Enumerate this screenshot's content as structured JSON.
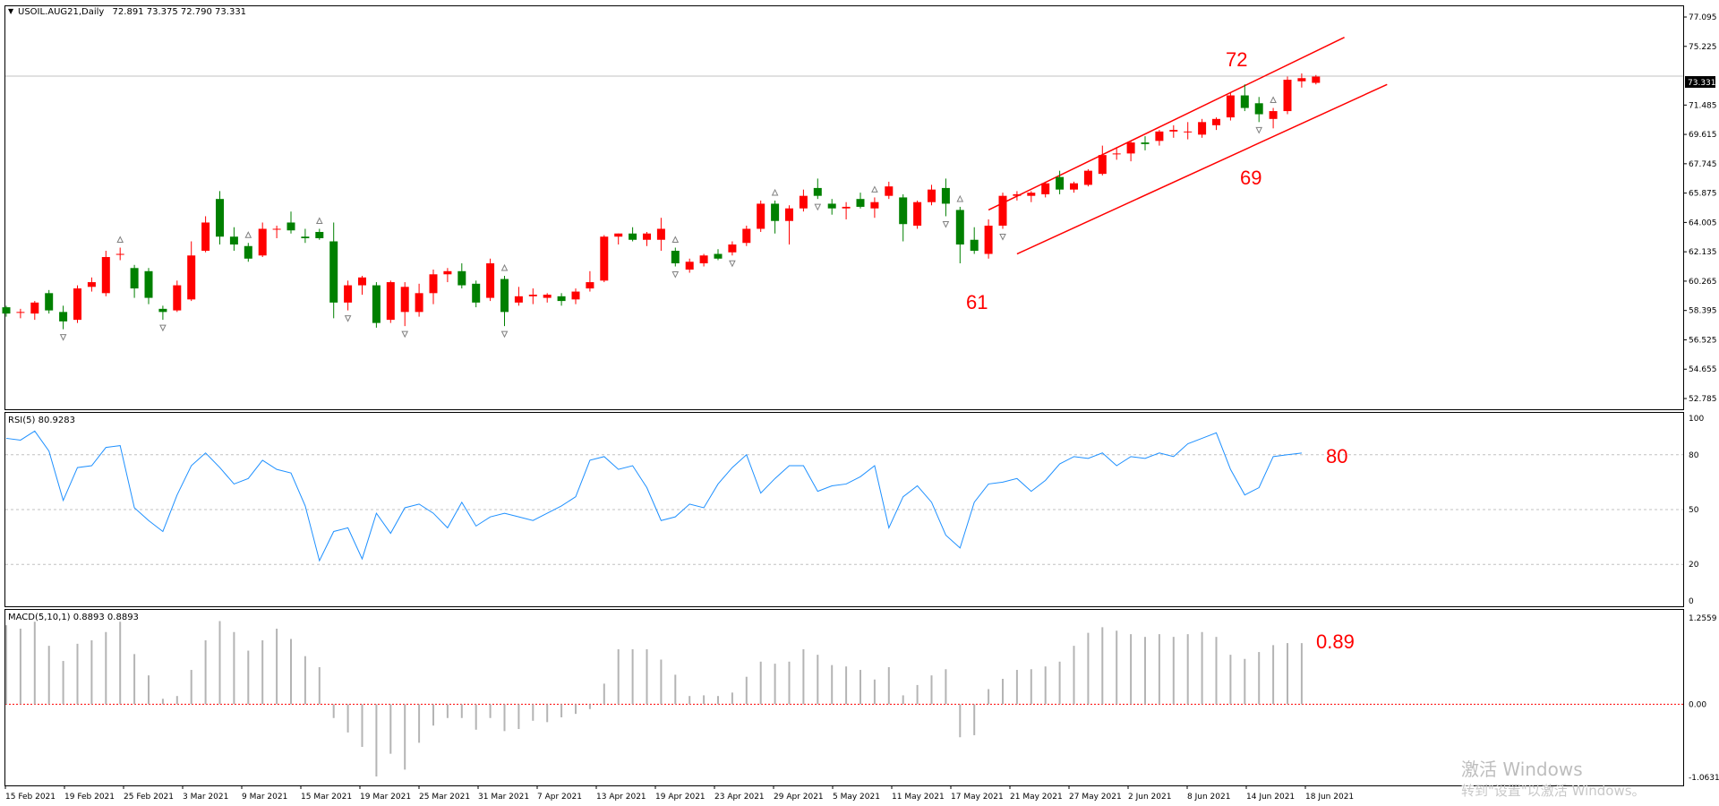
{
  "header": {
    "symbol": "USOIL.AUG21,Daily",
    "ohlc": "72.891 73.375 72.790 73.331"
  },
  "colors": {
    "bull": "#ff0000",
    "bear": "#008000",
    "rsi_line": "#1e90ff",
    "macd_bars": "#b4b4b4",
    "channel": "#ff0000",
    "annotation": "#ff0000"
  },
  "chart_data": [
    {
      "type": "candlestick",
      "title": "USOIL.AUG21,Daily",
      "current_price_label": "73.331",
      "ylim": [
        52.785,
        77.095
      ],
      "y_ticks": [
        "77.095",
        "75.225",
        "73.331",
        "71.485",
        "69.615",
        "67.745",
        "65.875",
        "64.005",
        "62.135",
        "60.265",
        "58.395",
        "56.525",
        "54.655",
        "52.785"
      ],
      "x_ticks": [
        "15 Feb 2021",
        "19 Feb 2021",
        "25 Feb 2021",
        "3 Mar 2021",
        "9 Mar 2021",
        "15 Mar 2021",
        "19 Mar 2021",
        "25 Mar 2021",
        "31 Mar 2021",
        "7 Apr 2021",
        "13 Apr 2021",
        "19 Apr 2021",
        "23 Apr 2021",
        "29 Apr 2021",
        "5 May 2021",
        "11 May 2021",
        "17 May 2021",
        "21 May 2021",
        "27 May 2021",
        "2 Jun 2021",
        "8 Jun 2021",
        "14 Jun 2021",
        "18 Jun 2021"
      ],
      "candles": [
        [
          58.6,
          58.7,
          58.0,
          58.2
        ],
        [
          58.3,
          58.5,
          57.9,
          58.3
        ],
        [
          58.2,
          59.0,
          57.8,
          58.9
        ],
        [
          59.5,
          59.7,
          58.2,
          58.4
        ],
        [
          58.3,
          58.7,
          57.2,
          57.7
        ],
        [
          57.8,
          60.0,
          57.6,
          59.8
        ],
        [
          59.9,
          60.5,
          59.6,
          60.2
        ],
        [
          59.5,
          62.2,
          59.3,
          61.8
        ],
        [
          62.0,
          62.4,
          61.6,
          62.0
        ],
        [
          61.1,
          61.3,
          59.2,
          59.8
        ],
        [
          60.9,
          61.1,
          58.8,
          59.2
        ],
        [
          58.5,
          58.7,
          57.8,
          58.3
        ],
        [
          58.4,
          60.3,
          58.3,
          60.0
        ],
        [
          59.1,
          62.8,
          59.0,
          61.9
        ],
        [
          62.2,
          64.4,
          62.1,
          64.0
        ],
        [
          65.5,
          66.0,
          62.6,
          63.1
        ],
        [
          63.1,
          63.7,
          62.2,
          62.6
        ],
        [
          62.5,
          62.7,
          61.5,
          61.7
        ],
        [
          61.9,
          64.0,
          61.8,
          63.6
        ],
        [
          63.6,
          63.8,
          63.0,
          63.6
        ],
        [
          64.0,
          64.7,
          63.3,
          63.5
        ],
        [
          63.1,
          63.6,
          62.7,
          63.0
        ],
        [
          63.4,
          63.6,
          62.9,
          63.0
        ],
        [
          62.8,
          64.0,
          57.9,
          58.9
        ],
        [
          58.9,
          60.3,
          58.4,
          60.0
        ],
        [
          60.0,
          60.6,
          59.4,
          60.5
        ],
        [
          60.0,
          60.2,
          57.3,
          57.6
        ],
        [
          57.8,
          60.3,
          57.6,
          60.2
        ],
        [
          58.3,
          60.2,
          57.4,
          59.9
        ],
        [
          58.3,
          60.1,
          58.0,
          59.5
        ],
        [
          59.5,
          61.0,
          58.8,
          60.7
        ],
        [
          60.7,
          61.1,
          60.2,
          60.9
        ],
        [
          60.9,
          61.4,
          59.8,
          60.0
        ],
        [
          60.1,
          60.3,
          58.6,
          58.9
        ],
        [
          59.2,
          61.7,
          59.0,
          61.4
        ],
        [
          60.4,
          60.6,
          57.4,
          58.3
        ],
        [
          58.9,
          59.9,
          58.7,
          59.3
        ],
        [
          59.3,
          59.8,
          58.8,
          59.4
        ],
        [
          59.2,
          59.5,
          58.9,
          59.4
        ],
        [
          59.3,
          59.5,
          58.7,
          59.0
        ],
        [
          59.1,
          59.8,
          58.8,
          59.6
        ],
        [
          59.8,
          60.9,
          59.6,
          60.2
        ],
        [
          60.3,
          63.2,
          60.2,
          63.1
        ],
        [
          63.1,
          63.3,
          62.6,
          63.3
        ],
        [
          63.3,
          63.7,
          62.8,
          62.9
        ],
        [
          62.9,
          63.4,
          62.5,
          63.3
        ],
        [
          62.9,
          64.3,
          62.2,
          63.6
        ],
        [
          62.2,
          62.4,
          61.2,
          61.4
        ],
        [
          61.0,
          61.7,
          60.8,
          61.5
        ],
        [
          61.4,
          62.0,
          61.2,
          61.9
        ],
        [
          62.0,
          62.3,
          61.6,
          61.7
        ],
        [
          62.1,
          62.8,
          61.9,
          62.6
        ],
        [
          62.7,
          63.8,
          62.5,
          63.6
        ],
        [
          63.6,
          65.4,
          63.4,
          65.2
        ],
        [
          65.2,
          65.4,
          63.3,
          64.1
        ],
        [
          64.1,
          65.1,
          62.6,
          64.9
        ],
        [
          64.9,
          66.1,
          64.7,
          65.7
        ],
        [
          66.2,
          66.8,
          65.5,
          65.7
        ],
        [
          65.2,
          65.5,
          64.5,
          64.9
        ],
        [
          64.9,
          65.3,
          64.2,
          65.0
        ],
        [
          65.5,
          65.9,
          64.9,
          65.0
        ],
        [
          64.9,
          65.6,
          64.3,
          65.3
        ],
        [
          65.7,
          66.6,
          65.5,
          66.3
        ],
        [
          65.6,
          65.8,
          62.8,
          63.9
        ],
        [
          63.8,
          65.4,
          63.6,
          65.3
        ],
        [
          65.3,
          66.4,
          65.1,
          66.1
        ],
        [
          66.2,
          66.8,
          64.4,
          65.2
        ],
        [
          64.8,
          65.0,
          61.4,
          62.6
        ],
        [
          62.9,
          63.7,
          62.0,
          62.2
        ],
        [
          62.0,
          64.2,
          61.7,
          63.8
        ],
        [
          63.8,
          65.9,
          63.6,
          65.7
        ],
        [
          65.7,
          66.0,
          65.4,
          65.8
        ],
        [
          65.7,
          66.0,
          65.3,
          65.9
        ],
        [
          65.8,
          66.6,
          65.6,
          66.5
        ],
        [
          66.9,
          67.3,
          65.8,
          66.1
        ],
        [
          66.1,
          66.6,
          65.9,
          66.5
        ],
        [
          66.4,
          67.4,
          66.3,
          67.3
        ],
        [
          67.1,
          68.9,
          67.0,
          68.3
        ],
        [
          68.4,
          68.8,
          68.0,
          68.4
        ],
        [
          68.4,
          69.2,
          67.9,
          69.1
        ],
        [
          69.1,
          69.5,
          68.6,
          69.0
        ],
        [
          69.2,
          69.9,
          68.9,
          69.8
        ],
        [
          69.8,
          70.2,
          69.4,
          69.9
        ],
        [
          69.8,
          70.4,
          69.3,
          69.8
        ],
        [
          69.6,
          70.6,
          69.4,
          70.4
        ],
        [
          70.2,
          70.7,
          69.9,
          70.6
        ],
        [
          70.7,
          72.3,
          70.5,
          72.1
        ],
        [
          72.1,
          72.8,
          71.1,
          71.3
        ],
        [
          71.6,
          72.0,
          70.4,
          70.9
        ],
        [
          70.6,
          71.3,
          70.0,
          71.1
        ],
        [
          71.1,
          73.3,
          70.9,
          73.1
        ],
        [
          73.0,
          73.5,
          72.6,
          73.2
        ],
        [
          72.9,
          73.4,
          72.8,
          73.3
        ]
      ],
      "fractals_up_idx": [
        8,
        17,
        22,
        35,
        47,
        54,
        61,
        67,
        89
      ],
      "fractals_down_idx": [
        4,
        11,
        24,
        28,
        35,
        47,
        51,
        57,
        66,
        70,
        88
      ],
      "channel": {
        "upper": [
          [
            69,
            64.8
          ],
          [
            94,
            75.8
          ]
        ],
        "lower": [
          [
            71,
            62.0
          ],
          [
            97,
            72.8
          ]
        ]
      },
      "annotations": [
        {
          "text": "72",
          "idx": 89,
          "price": 75.2
        },
        {
          "text": "69",
          "idx": 89,
          "price": 67.3
        },
        {
          "text": "61",
          "idx": 71,
          "price": 59.3
        }
      ]
    },
    {
      "type": "line",
      "title": "RSI(5) 80.9283",
      "ylim": [
        0,
        100
      ],
      "y_ticks": [
        100,
        80,
        50,
        20,
        0
      ],
      "levels": [
        80,
        50,
        20
      ],
      "values": [
        89,
        88,
        93,
        82,
        55,
        73,
        74,
        84,
        85,
        51,
        44,
        38,
        58,
        74,
        81,
        73,
        64,
        67,
        77,
        72,
        70,
        52,
        22,
        38,
        40,
        23,
        48,
        37,
        51,
        53,
        48,
        40,
        54,
        41,
        46,
        48,
        46,
        44,
        48,
        52,
        57,
        77,
        79,
        72,
        74,
        62,
        44,
        46,
        53,
        51,
        64,
        73,
        80,
        59,
        67,
        74,
        74,
        60,
        63,
        64,
        68,
        74,
        40,
        57,
        63,
        54,
        36,
        29,
        54,
        64,
        65,
        67,
        60,
        66,
        75,
        79,
        78,
        81,
        74,
        79,
        78,
        81,
        79,
        86,
        89,
        92,
        72,
        58,
        62,
        79,
        80,
        80.93
      ],
      "annotation": {
        "text": "80"
      }
    },
    {
      "type": "bar",
      "title": "MACD(5,10,1) 0.8893 0.8893",
      "ylim": [
        -1.0631,
        1.2559
      ],
      "y_ticks": [
        "1.2559",
        "0.00",
        "-1.0631"
      ],
      "values": [
        1.15,
        1.1,
        1.2,
        0.85,
        0.63,
        0.88,
        0.93,
        1.05,
        1.2,
        0.73,
        0.42,
        0.08,
        0.12,
        0.5,
        0.93,
        1.21,
        1.05,
        0.78,
        0.93,
        1.1,
        0.95,
        0.7,
        0.54,
        -0.2,
        -0.41,
        -0.62,
        -1.05,
        -0.72,
        -0.95,
        -0.56,
        -0.31,
        -0.2,
        -0.2,
        -0.37,
        -0.2,
        -0.39,
        -0.36,
        -0.24,
        -0.26,
        -0.19,
        -0.14,
        -0.07,
        0.3,
        0.8,
        0.8,
        0.8,
        0.65,
        0.43,
        0.12,
        0.13,
        0.12,
        0.17,
        0.4,
        0.62,
        0.59,
        0.62,
        0.8,
        0.72,
        0.57,
        0.55,
        0.5,
        0.36,
        0.54,
        0.13,
        0.28,
        0.42,
        0.51,
        -0.48,
        -0.45,
        0.22,
        0.37,
        0.5,
        0.51,
        0.55,
        0.62,
        0.85,
        1.04,
        1.12,
        1.07,
        1.02,
        0.98,
        1.02,
        0.98,
        1.02,
        1.05,
        0.98,
        0.72,
        0.66,
        0.76,
        0.86,
        0.89,
        0.89
      ],
      "annotation": {
        "text": "0.89"
      }
    }
  ],
  "watermark": {
    "line1": "激活 Windows",
    "line2": "转到\"设置\"以激活 Windows。"
  }
}
